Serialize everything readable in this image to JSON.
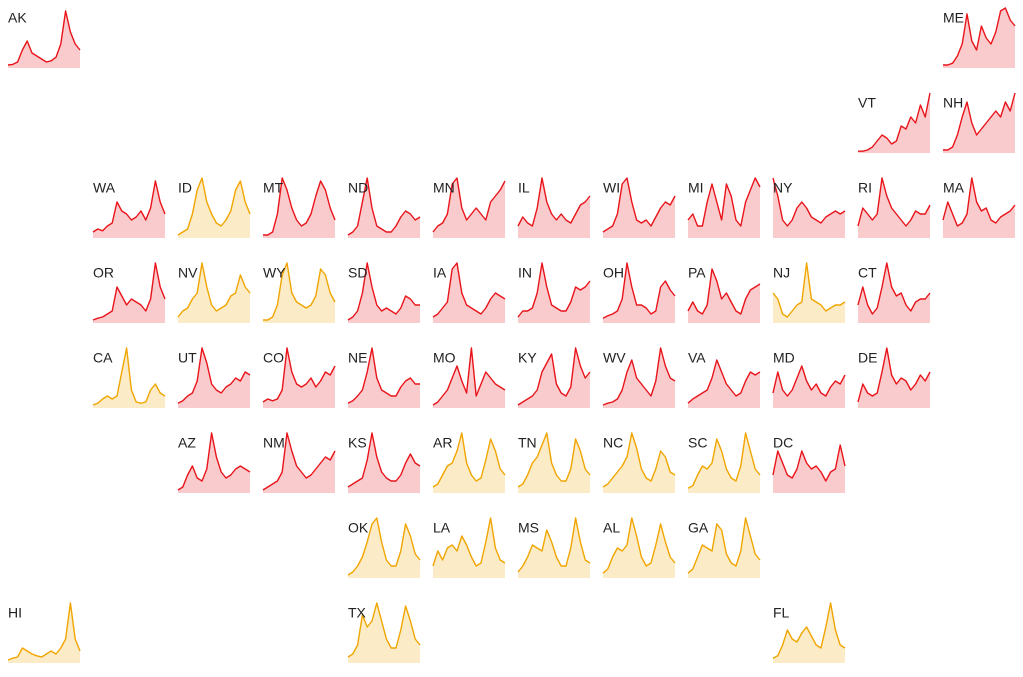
{
  "chart_data": [
    {
      "type": "area",
      "title": "AK",
      "color": "#e8141a",
      "ylim": [
        0,
        100
      ],
      "values": [
        5,
        6,
        10,
        30,
        45,
        25,
        20,
        15,
        10,
        12,
        18,
        40,
        95,
        60,
        40,
        30
      ]
    },
    {
      "type": "area",
      "title": "ME",
      "color": "#e8141a",
      "ylim": [
        0,
        100
      ],
      "values": [
        5,
        5,
        8,
        20,
        40,
        90,
        45,
        30,
        70,
        50,
        40,
        60,
        95,
        100,
        80,
        70
      ]
    },
    {
      "type": "area",
      "title": "VT",
      "color": "#e8141a",
      "ylim": [
        0,
        100
      ],
      "values": [
        3,
        3,
        5,
        10,
        20,
        30,
        25,
        15,
        20,
        45,
        40,
        60,
        50,
        80,
        60,
        100
      ]
    },
    {
      "type": "area",
      "title": "NH",
      "color": "#e8141a",
      "ylim": [
        0,
        100
      ],
      "values": [
        5,
        5,
        10,
        30,
        60,
        85,
        50,
        30,
        40,
        50,
        60,
        70,
        60,
        85,
        70,
        100
      ]
    },
    {
      "type": "area",
      "title": "WA",
      "color": "#e8141a",
      "ylim": [
        0,
        100
      ],
      "values": [
        10,
        15,
        12,
        20,
        25,
        60,
        45,
        40,
        30,
        35,
        45,
        30,
        50,
        95,
        60,
        40
      ]
    },
    {
      "type": "area",
      "title": "ID",
      "color": "#f0a500",
      "ylim": [
        0,
        100
      ],
      "values": [
        5,
        10,
        15,
        40,
        80,
        100,
        60,
        40,
        25,
        20,
        30,
        45,
        80,
        95,
        60,
        40
      ]
    },
    {
      "type": "area",
      "title": "MT",
      "color": "#e8141a",
      "ylim": [
        0,
        100
      ],
      "values": [
        5,
        5,
        10,
        40,
        100,
        80,
        50,
        30,
        20,
        25,
        40,
        70,
        95,
        80,
        50,
        30
      ]
    },
    {
      "type": "area",
      "title": "ND",
      "color": "#e8141a",
      "ylim": [
        0,
        100
      ],
      "values": [
        5,
        10,
        20,
        60,
        100,
        50,
        20,
        15,
        10,
        10,
        20,
        35,
        45,
        40,
        30,
        35
      ]
    },
    {
      "type": "area",
      "title": "MN",
      "color": "#e8141a",
      "ylim": [
        0,
        100
      ],
      "values": [
        10,
        20,
        25,
        40,
        90,
        100,
        50,
        30,
        40,
        50,
        40,
        30,
        60,
        70,
        80,
        95
      ]
    },
    {
      "type": "area",
      "title": "IL",
      "color": "#e8141a",
      "ylim": [
        0,
        100
      ],
      "values": [
        20,
        35,
        25,
        20,
        50,
        100,
        60,
        40,
        30,
        40,
        30,
        25,
        40,
        55,
        60,
        70
      ]
    },
    {
      "type": "area",
      "title": "WI",
      "color": "#e8141a",
      "ylim": [
        0,
        100
      ],
      "values": [
        10,
        15,
        20,
        40,
        90,
        100,
        60,
        30,
        25,
        30,
        20,
        35,
        50,
        60,
        55,
        70
      ]
    },
    {
      "type": "area",
      "title": "MI",
      "color": "#e8141a",
      "ylim": [
        0,
        100
      ],
      "values": [
        30,
        40,
        20,
        20,
        60,
        90,
        60,
        30,
        90,
        70,
        30,
        20,
        60,
        80,
        100,
        85
      ]
    },
    {
      "type": "area",
      "title": "NY",
      "color": "#e8141a",
      "ylim": [
        0,
        100
      ],
      "values": [
        100,
        70,
        30,
        20,
        30,
        50,
        60,
        50,
        35,
        30,
        25,
        35,
        40,
        45,
        40,
        45
      ]
    },
    {
      "type": "area",
      "title": "RI",
      "color": "#e8141a",
      "ylim": [
        0,
        100
      ],
      "values": [
        20,
        50,
        40,
        30,
        40,
        100,
        70,
        50,
        40,
        30,
        20,
        30,
        45,
        40,
        40,
        55
      ]
    },
    {
      "type": "area",
      "title": "MA",
      "color": "#e8141a",
      "ylim": [
        0,
        100
      ],
      "values": [
        30,
        60,
        40,
        20,
        25,
        40,
        100,
        60,
        45,
        50,
        30,
        25,
        35,
        40,
        45,
        55
      ]
    },
    {
      "type": "area",
      "title": "OR",
      "color": "#e8141a",
      "ylim": [
        0,
        100
      ],
      "values": [
        5,
        8,
        10,
        15,
        20,
        60,
        45,
        30,
        40,
        35,
        30,
        20,
        40,
        100,
        60,
        40
      ]
    },
    {
      "type": "area",
      "title": "NV",
      "color": "#f0a500",
      "ylim": [
        0,
        100
      ],
      "values": [
        10,
        20,
        25,
        40,
        50,
        100,
        60,
        30,
        20,
        25,
        30,
        45,
        50,
        80,
        60,
        50
      ]
    },
    {
      "type": "area",
      "title": "WY",
      "color": "#f0a500",
      "ylim": [
        0,
        100
      ],
      "values": [
        5,
        5,
        10,
        30,
        80,
        100,
        50,
        35,
        30,
        25,
        30,
        45,
        90,
        80,
        50,
        35
      ]
    },
    {
      "type": "area",
      "title": "SD",
      "color": "#e8141a",
      "ylim": [
        0,
        100
      ],
      "values": [
        5,
        10,
        20,
        50,
        100,
        60,
        30,
        20,
        25,
        20,
        15,
        25,
        45,
        40,
        30,
        30
      ]
    },
    {
      "type": "area",
      "title": "IA",
      "color": "#e8141a",
      "ylim": [
        0,
        100
      ],
      "values": [
        10,
        15,
        25,
        35,
        90,
        100,
        50,
        30,
        25,
        20,
        15,
        25,
        40,
        50,
        45,
        40
      ]
    },
    {
      "type": "area",
      "title": "IN",
      "color": "#e8141a",
      "ylim": [
        0,
        100
      ],
      "values": [
        10,
        20,
        20,
        25,
        50,
        100,
        60,
        30,
        25,
        20,
        20,
        35,
        60,
        55,
        60,
        70
      ]
    },
    {
      "type": "area",
      "title": "OH",
      "color": "#e8141a",
      "ylim": [
        0,
        100
      ],
      "values": [
        8,
        12,
        15,
        20,
        40,
        100,
        60,
        30,
        30,
        25,
        15,
        20,
        60,
        70,
        55,
        45
      ]
    },
    {
      "type": "area",
      "title": "PA",
      "color": "#e8141a",
      "ylim": [
        0,
        100
      ],
      "values": [
        20,
        35,
        20,
        15,
        30,
        90,
        70,
        40,
        50,
        35,
        20,
        15,
        40,
        55,
        60,
        65
      ]
    },
    {
      "type": "area",
      "title": "NJ",
      "color": "#f0a500",
      "ylim": [
        0,
        100
      ],
      "values": [
        50,
        40,
        15,
        10,
        20,
        30,
        35,
        100,
        40,
        35,
        30,
        20,
        25,
        30,
        30,
        35
      ]
    },
    {
      "type": "area",
      "title": "CT",
      "color": "#e8141a",
      "ylim": [
        0,
        100
      ],
      "values": [
        30,
        60,
        30,
        15,
        25,
        60,
        100,
        60,
        45,
        50,
        30,
        20,
        35,
        40,
        40,
        50
      ]
    },
    {
      "type": "area",
      "title": "CA",
      "color": "#f0a500",
      "ylim": [
        0,
        100
      ],
      "values": [
        5,
        8,
        15,
        20,
        15,
        20,
        60,
        100,
        30,
        10,
        8,
        10,
        30,
        40,
        25,
        20
      ]
    },
    {
      "type": "area",
      "title": "UT",
      "color": "#e8141a",
      "ylim": [
        0,
        100
      ],
      "values": [
        8,
        12,
        20,
        25,
        45,
        100,
        75,
        40,
        30,
        25,
        35,
        40,
        50,
        45,
        60,
        55
      ]
    },
    {
      "type": "area",
      "title": "CO",
      "color": "#e8141a",
      "ylim": [
        0,
        100
      ],
      "values": [
        10,
        15,
        12,
        15,
        30,
        100,
        60,
        40,
        35,
        40,
        50,
        35,
        45,
        60,
        55,
        70
      ]
    },
    {
      "type": "area",
      "title": "NE",
      "color": "#e8141a",
      "ylim": [
        0,
        100
      ],
      "values": [
        8,
        12,
        20,
        30,
        60,
        100,
        50,
        30,
        25,
        20,
        20,
        35,
        45,
        50,
        40,
        40
      ]
    },
    {
      "type": "area",
      "title": "MO",
      "color": "#e8141a",
      "ylim": [
        0,
        100
      ],
      "values": [
        5,
        10,
        20,
        30,
        50,
        70,
        45,
        25,
        100,
        20,
        40,
        60,
        50,
        40,
        35,
        30
      ]
    },
    {
      "type": "area",
      "title": "KY",
      "color": "#e8141a",
      "ylim": [
        0,
        100
      ],
      "values": [
        5,
        10,
        15,
        20,
        30,
        60,
        75,
        90,
        40,
        25,
        20,
        35,
        100,
        70,
        50,
        60
      ]
    },
    {
      "type": "area",
      "title": "WV",
      "color": "#e8141a",
      "ylim": [
        0,
        100
      ],
      "values": [
        5,
        8,
        10,
        15,
        30,
        60,
        80,
        50,
        40,
        30,
        20,
        45,
        100,
        70,
        50,
        45
      ]
    },
    {
      "type": "area",
      "title": "VA",
      "color": "#e8141a",
      "ylim": [
        0,
        100
      ],
      "values": [
        8,
        15,
        20,
        25,
        30,
        50,
        80,
        60,
        40,
        30,
        20,
        25,
        45,
        60,
        55,
        60
      ]
    },
    {
      "type": "area",
      "title": "MD",
      "color": "#e8141a",
      "ylim": [
        0,
        100
      ],
      "values": [
        25,
        60,
        30,
        20,
        30,
        50,
        70,
        45,
        30,
        40,
        25,
        20,
        35,
        45,
        40,
        55
      ]
    },
    {
      "type": "area",
      "title": "DE",
      "color": "#e8141a",
      "ylim": [
        0,
        100
      ],
      "values": [
        10,
        40,
        25,
        20,
        25,
        60,
        100,
        55,
        40,
        50,
        45,
        30,
        40,
        55,
        45,
        60
      ]
    },
    {
      "type": "area",
      "title": "AZ",
      "color": "#e8141a",
      "ylim": [
        0,
        100
      ],
      "values": [
        5,
        10,
        30,
        45,
        25,
        20,
        40,
        100,
        60,
        35,
        25,
        30,
        40,
        45,
        40,
        35
      ]
    },
    {
      "type": "area",
      "title": "NM",
      "color": "#e8141a",
      "ylim": [
        0,
        100
      ],
      "values": [
        5,
        10,
        15,
        20,
        35,
        100,
        70,
        45,
        35,
        25,
        30,
        40,
        50,
        60,
        55,
        70
      ]
    },
    {
      "type": "area",
      "title": "KS",
      "color": "#e8141a",
      "ylim": [
        0,
        100
      ],
      "values": [
        10,
        15,
        20,
        25,
        55,
        100,
        60,
        35,
        25,
        20,
        20,
        30,
        50,
        65,
        50,
        45
      ]
    },
    {
      "type": "area",
      "title": "AR",
      "color": "#f0a500",
      "ylim": [
        0,
        100
      ],
      "values": [
        10,
        15,
        30,
        45,
        50,
        70,
        100,
        50,
        30,
        20,
        25,
        55,
        90,
        70,
        40,
        30
      ]
    },
    {
      "type": "area",
      "title": "TN",
      "color": "#f0a500",
      "ylim": [
        0,
        100
      ],
      "values": [
        10,
        15,
        30,
        50,
        60,
        80,
        100,
        50,
        30,
        20,
        20,
        40,
        90,
        70,
        40,
        30
      ]
    },
    {
      "type": "area",
      "title": "NC",
      "color": "#f0a500",
      "ylim": [
        0,
        100
      ],
      "values": [
        10,
        15,
        25,
        35,
        45,
        60,
        100,
        75,
        40,
        25,
        20,
        40,
        70,
        60,
        35,
        30
      ]
    },
    {
      "type": "area",
      "title": "SC",
      "color": "#f0a500",
      "ylim": [
        0,
        100
      ],
      "values": [
        8,
        12,
        30,
        45,
        40,
        50,
        90,
        70,
        40,
        25,
        20,
        45,
        100,
        70,
        40,
        30
      ]
    },
    {
      "type": "area",
      "title": "DC",
      "color": "#e8141a",
      "ylim": [
        0,
        100
      ],
      "values": [
        30,
        70,
        50,
        30,
        25,
        40,
        70,
        50,
        40,
        45,
        35,
        20,
        35,
        40,
        80,
        45
      ]
    },
    {
      "type": "area",
      "title": "OK",
      "color": "#f0a500",
      "ylim": [
        0,
        100
      ],
      "values": [
        5,
        10,
        20,
        35,
        60,
        90,
        100,
        60,
        30,
        20,
        20,
        45,
        90,
        70,
        40,
        30
      ]
    },
    {
      "type": "area",
      "title": "LA",
      "color": "#f0a500",
      "ylim": [
        0,
        100
      ],
      "values": [
        20,
        45,
        30,
        50,
        55,
        45,
        70,
        55,
        35,
        20,
        25,
        60,
        100,
        50,
        30,
        25
      ]
    },
    {
      "type": "area",
      "title": "MS",
      "color": "#f0a500",
      "ylim": [
        0,
        100
      ],
      "values": [
        10,
        20,
        35,
        55,
        50,
        45,
        80,
        60,
        35,
        20,
        20,
        50,
        100,
        60,
        30,
        25
      ]
    },
    {
      "type": "area",
      "title": "AL",
      "color": "#f0a500",
      "ylim": [
        0,
        100
      ],
      "values": [
        8,
        15,
        35,
        50,
        45,
        55,
        100,
        70,
        35,
        20,
        25,
        55,
        90,
        60,
        35,
        25
      ]
    },
    {
      "type": "area",
      "title": "GA",
      "color": "#f0a500",
      "ylim": [
        0,
        100
      ],
      "values": [
        8,
        15,
        35,
        55,
        50,
        45,
        90,
        80,
        40,
        25,
        20,
        45,
        100,
        70,
        40,
        30
      ]
    },
    {
      "type": "area",
      "title": "HI",
      "color": "#f0a500",
      "ylim": [
        0,
        100
      ],
      "values": [
        5,
        8,
        10,
        25,
        20,
        15,
        12,
        10,
        15,
        20,
        15,
        25,
        40,
        100,
        40,
        20
      ]
    },
    {
      "type": "area",
      "title": "TX",
      "color": "#f0a500",
      "ylim": [
        0,
        100
      ],
      "values": [
        10,
        15,
        30,
        80,
        60,
        70,
        100,
        70,
        40,
        25,
        25,
        55,
        95,
        70,
        40,
        30
      ]
    },
    {
      "type": "area",
      "title": "FL",
      "color": "#f0a500",
      "ylim": [
        0,
        100
      ],
      "values": [
        8,
        12,
        30,
        55,
        40,
        35,
        50,
        60,
        45,
        30,
        25,
        60,
        100,
        55,
        30,
        25
      ]
    }
  ]
}
